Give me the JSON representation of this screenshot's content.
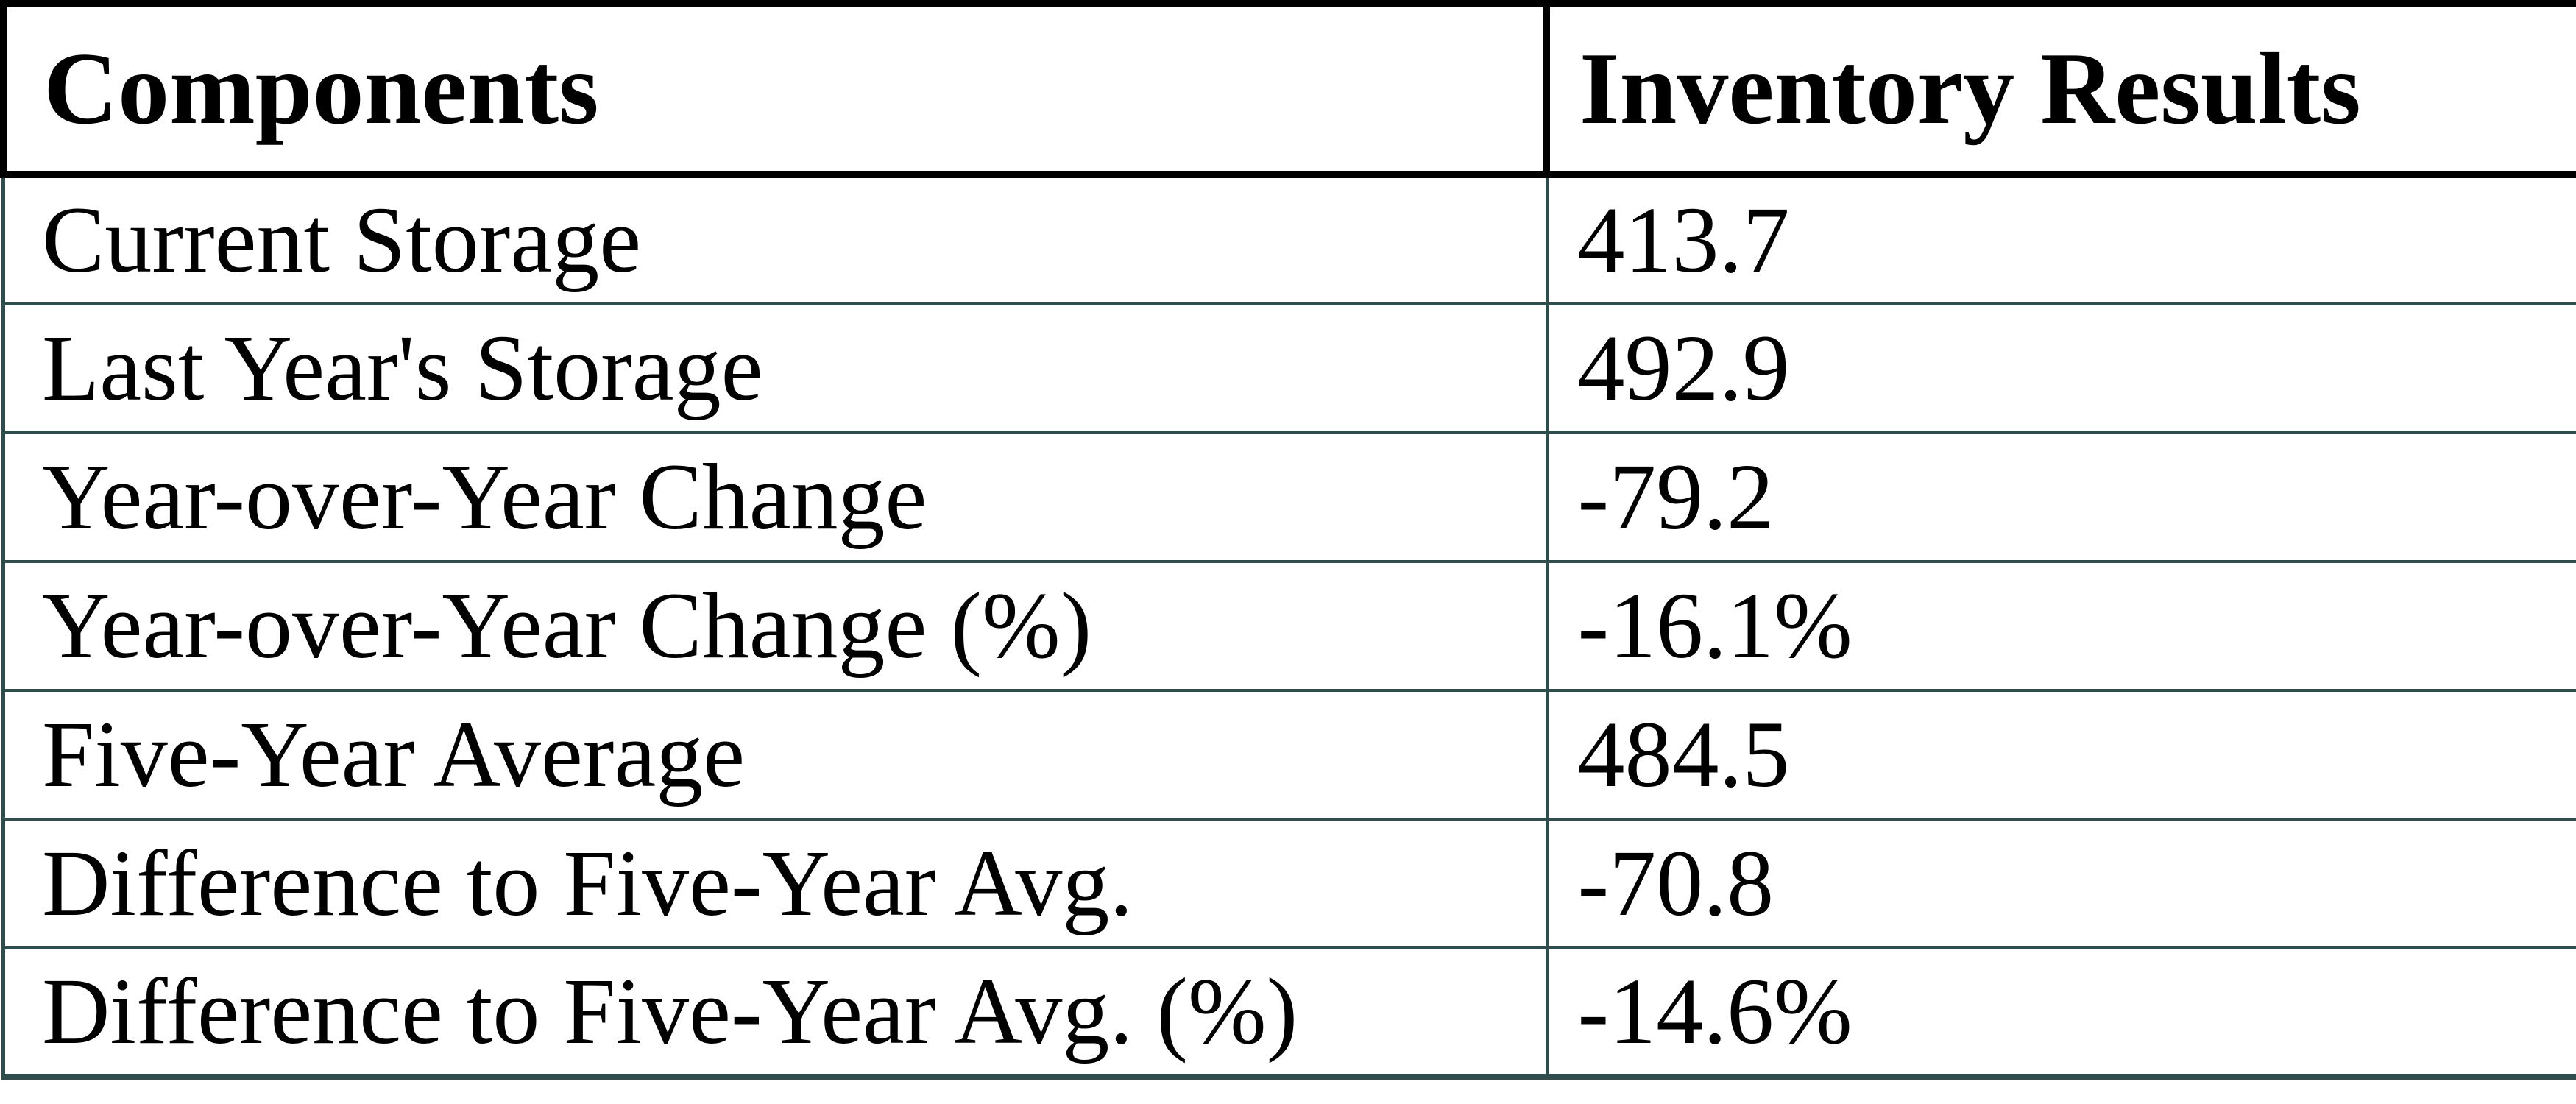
{
  "table": {
    "headers": {
      "component": "Components",
      "result": "Inventory Results"
    },
    "rows": [
      {
        "component": "Current Storage",
        "result": "413.7"
      },
      {
        "component": "Last Year's Storage",
        "result": "492.9"
      },
      {
        "component": "Year-over-Year Change",
        "result": "-79.2"
      },
      {
        "component": "Year-over-Year Change (%)",
        "result": "-16.1%"
      },
      {
        "component": "Five-Year Average",
        "result": "484.5"
      },
      {
        "component": "Difference to Five-Year Avg.",
        "result": "-70.8"
      },
      {
        "component": "Difference to Five-Year Avg. (%)",
        "result": "-14.6%"
      }
    ]
  },
  "colors": {
    "header_border": "#000000",
    "grid_border": "#2f4d4d",
    "text": "#000000",
    "background": "#ffffff"
  },
  "chart_data": {
    "type": "table",
    "title": "Inventory Results",
    "columns": [
      "Components",
      "Inventory Results"
    ],
    "rows": [
      [
        "Current Storage",
        "413.7"
      ],
      [
        "Last Year's Storage",
        "492.9"
      ],
      [
        "Year-over-Year Change",
        "-79.2"
      ],
      [
        "Year-over-Year Change (%)",
        "-16.1%"
      ],
      [
        "Five-Year Average",
        "484.5"
      ],
      [
        "Difference to Five-Year Avg.",
        "-70.8"
      ],
      [
        "Difference to Five-Year Avg. (%)",
        "-14.6%"
      ]
    ],
    "values": {
      "current_storage": 413.7,
      "last_year_storage": 492.9,
      "yoy_change": -79.2,
      "yoy_change_pct": -16.1,
      "five_year_average": 484.5,
      "difference_to_five_year_avg": -70.8,
      "difference_to_five_year_avg_pct": -14.6
    }
  }
}
